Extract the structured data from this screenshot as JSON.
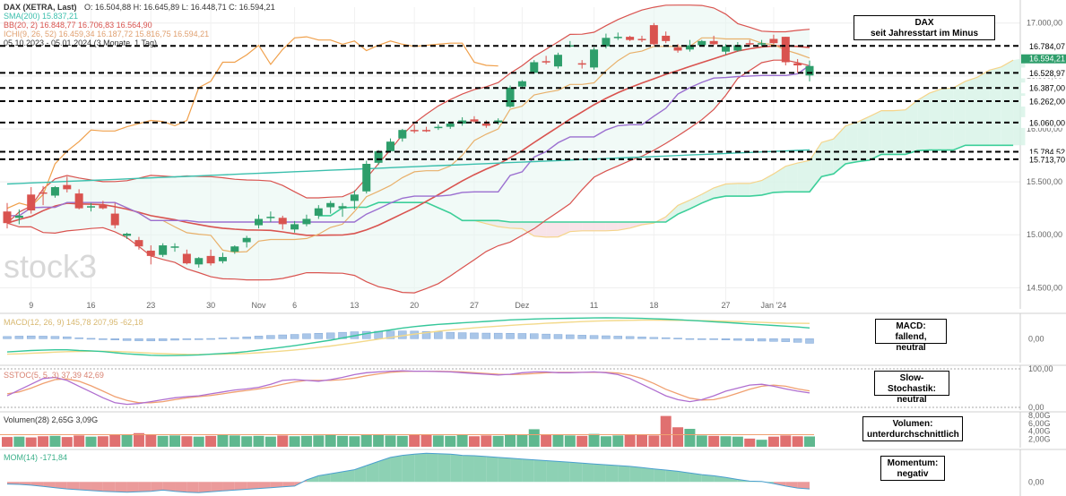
{
  "header": {
    "instrument": "DAX (XETRA, Last)",
    "ohlc": "O: 16.504,88   H: 16.645,89   L: 16.448,71   C: 16.594,21",
    "sma": "SMA(200)  15.837,21",
    "bb": "BB(20, 2)  16.848,77  16.706,83  16.564,90",
    "ichimoku": "ICHI(9, 26, 52)  16.459,34  16.187,72  15.816,75  16.594,21",
    "period": "05.10.2023 - 05.01.2024   (3 Monate, 1 Tag)"
  },
  "watermark": "stock3",
  "annotations": {
    "main": [
      "DAX",
      "seit Jahresstart im Minus"
    ],
    "macd": [
      "MACD:",
      "fallend, neutral"
    ],
    "stoch": [
      "Slow-Stochastik:",
      "neutral"
    ],
    "volume": [
      "Volumen:",
      "unterdurchschnittlich"
    ],
    "momentum": [
      "Momentum:",
      "negativ"
    ]
  },
  "indicator_legends": {
    "macd": "MACD(12, 26, 9)  145,78  207,95  -62,18",
    "stoch": "SSTOC(5, 5, 3)  37,39  42,69",
    "volume": "Volumen(28)  2,65G  3,09G",
    "momentum": "MOM(14)  -171,84"
  },
  "colors": {
    "up": "#2e9e6b",
    "down": "#d9534f",
    "bb": "#d9534f",
    "sma": "#3bbfad",
    "tenkan": "#e8b06a",
    "kijun": "#d9534f",
    "chikou": "#f0a04b",
    "senkouA": "#3ccf9a",
    "senkouB": "#9b6fd0",
    "leading": "#f5d48a",
    "cloud_up": "#d6f2e6",
    "cloud_down": "#f6dde3",
    "hline": "#000000",
    "macd": "#35c79a",
    "signal": "#f3d98a",
    "hist": "#a9c6e8",
    "stoch_k": "#b06fd0",
    "stoch_d": "#f0a070",
    "vol_up": "#5fb88f",
    "vol_down": "#e07070",
    "mom": "#79c9a7",
    "mom_neg": "#e88a8a"
  },
  "chart_data": [
    {
      "type": "candlestick",
      "title": "DAX (XETRA, Last)",
      "y_axis_ticks": [
        "14.500,00",
        "15.000,00",
        "15.500,00",
        "16.000,00",
        "16.500,00",
        "17.000,00"
      ],
      "ylim": [
        14300,
        17150
      ],
      "x_tick_labels": [
        "9",
        "16",
        "23",
        "30",
        "Nov",
        "6",
        "13",
        "20",
        "27",
        "Dez",
        "11",
        "18",
        "27",
        "Jan '24"
      ],
      "x_tick_index": [
        2,
        7,
        12,
        17,
        21,
        24,
        29,
        34,
        39,
        43,
        49,
        54,
        60,
        64
      ],
      "ohlc": [
        [
          15220,
          15300,
          15060,
          15110
        ],
        [
          15160,
          15240,
          15100,
          15180
        ],
        [
          15380,
          15450,
          15200,
          15230
        ],
        [
          15400,
          15460,
          15280,
          15390
        ],
        [
          15370,
          15460,
          15350,
          15450
        ],
        [
          15470,
          15550,
          15400,
          15430
        ],
        [
          15390,
          15430,
          15240,
          15250
        ],
        [
          15270,
          15300,
          15220,
          15270
        ],
        [
          15280,
          15320,
          15240,
          15250
        ],
        [
          15200,
          15300,
          15060,
          15090
        ],
        [
          14990,
          15020,
          14960,
          15010
        ],
        [
          14950,
          14980,
          14860,
          14890
        ],
        [
          14850,
          14900,
          14720,
          14800
        ],
        [
          14810,
          14920,
          14790,
          14900
        ],
        [
          14880,
          14920,
          14840,
          14890
        ],
        [
          14820,
          14860,
          14720,
          14730
        ],
        [
          14720,
          14790,
          14690,
          14780
        ],
        [
          14800,
          14860,
          14710,
          14730
        ],
        [
          14750,
          14830,
          14730,
          14790
        ],
        [
          14840,
          14900,
          14820,
          14890
        ],
        [
          14930,
          14990,
          14880,
          14970
        ],
        [
          15090,
          15190,
          15060,
          15150
        ],
        [
          15160,
          15220,
          15120,
          15170
        ],
        [
          15160,
          15180,
          15050,
          15100
        ],
        [
          15050,
          15130,
          15020,
          15100
        ],
        [
          15100,
          15190,
          15080,
          15150
        ],
        [
          15180,
          15280,
          15150,
          15250
        ],
        [
          15260,
          15320,
          15200,
          15300
        ],
        [
          15250,
          15300,
          15170,
          15270
        ],
        [
          15320,
          15420,
          15240,
          15380
        ],
        [
          15410,
          15700,
          15390,
          15670
        ],
        [
          15680,
          15800,
          15660,
          15790
        ],
        [
          15790,
          15910,
          15780,
          15880
        ],
        [
          15910,
          16000,
          15880,
          15990
        ],
        [
          15990,
          16040,
          15960,
          15980
        ],
        [
          15990,
          16020,
          15970,
          15980
        ],
        [
          16010,
          16040,
          15990,
          16020
        ],
        [
          16020,
          16060,
          16000,
          16050
        ],
        [
          16050,
          16110,
          16030,
          16080
        ],
        [
          16090,
          16120,
          16060,
          16070
        ],
        [
          16050,
          16080,
          16010,
          16030
        ],
        [
          16060,
          16100,
          16040,
          16080
        ],
        [
          16210,
          16410,
          16200,
          16390
        ],
        [
          16400,
          16460,
          16380,
          16450
        ],
        [
          16530,
          16650,
          16520,
          16630
        ],
        [
          16640,
          16690,
          16610,
          16630
        ],
        [
          16590,
          16720,
          16570,
          16700
        ],
        [
          16790,
          16830,
          16770,
          16790
        ],
        [
          16620,
          16650,
          16570,
          16610
        ],
        [
          16580,
          16770,
          16560,
          16750
        ],
        [
          16780,
          16900,
          16760,
          16860
        ],
        [
          16860,
          16910,
          16840,
          16870
        ],
        [
          16870,
          16880,
          16830,
          16840
        ],
        [
          16850,
          16880,
          16820,
          16840
        ],
        [
          16980,
          17000,
          16790,
          16800
        ],
        [
          16880,
          16920,
          16810,
          16830
        ],
        [
          16770,
          16800,
          16720,
          16740
        ],
        [
          16750,
          16840,
          16730,
          16790
        ],
        [
          16790,
          16840,
          16780,
          16830
        ],
        [
          16830,
          16880,
          16790,
          16800
        ],
        [
          16730,
          16800,
          16700,
          16780
        ],
        [
          16740,
          16820,
          16730,
          16790
        ],
        [
          16810,
          16840,
          16780,
          16800
        ],
        [
          16810,
          16840,
          16780,
          16810
        ],
        [
          16850,
          16890,
          16800,
          16810
        ],
        [
          16870,
          16870,
          16600,
          16630
        ],
        [
          16620,
          16660,
          16530,
          16600
        ],
        [
          16504.88,
          16645.89,
          16448.71,
          16594.21
        ]
      ],
      "horizontal_levels": [
        16784.07,
        16528.97,
        16387.0,
        16262.0,
        16060.0,
        15784.52,
        15713.7
      ],
      "horizontal_level_labels": [
        "16.784,07",
        "16.528,97",
        "16.387,00",
        "16.262,00",
        "16.060,00",
        "15.784,52",
        "15.713,70"
      ],
      "price_label": "16.594,21"
    },
    {
      "type": "line",
      "title": "MACD(12, 26, 9)",
      "y_axis_ticks": [
        "0,00"
      ],
      "series": [
        {
          "name": "MACD",
          "values": [
            -180,
            -170,
            -160,
            -155,
            -150,
            -150,
            -160,
            -165,
            -175,
            -190,
            -205,
            -215,
            -225,
            -230,
            -228,
            -225,
            -220,
            -210,
            -200,
            -190,
            -175,
            -155,
            -135,
            -115,
            -95,
            -70,
            -45,
            -20,
            10,
            40,
            70,
            95,
            120,
            145,
            165,
            180,
            195,
            205,
            215,
            225,
            235,
            245,
            255,
            262,
            268,
            272,
            275,
            278,
            280,
            282,
            283,
            282,
            280,
            276,
            270,
            265,
            258,
            250,
            240,
            230,
            220,
            210,
            200,
            190,
            180,
            170,
            160,
            145.78
          ]
        },
        {
          "name": "Signal",
          "values": [
            -210,
            -205,
            -198,
            -190,
            -182,
            -176,
            -172,
            -170,
            -170,
            -173,
            -180,
            -187,
            -195,
            -203,
            -208,
            -212,
            -214,
            -213,
            -210,
            -206,
            -200,
            -191,
            -180,
            -167,
            -153,
            -137,
            -119,
            -99,
            -77,
            -54,
            -30,
            -6,
            17,
            40,
            62,
            82,
            101,
            118,
            133,
            147,
            159,
            170,
            181,
            191,
            200,
            209,
            217,
            225,
            232,
            238,
            243,
            247,
            250,
            252,
            252,
            251,
            250,
            248,
            245,
            241,
            237,
            232,
            227,
            222,
            216,
            210,
            209,
            207.95
          ]
        }
      ],
      "histogram": [
        30,
        35,
        38,
        35,
        32,
        26,
        12,
        5,
        -5,
        -17,
        -25,
        -28,
        -30,
        -27,
        -20,
        -13,
        -6,
        3,
        10,
        16,
        25,
        36,
        45,
        52,
        58,
        67,
        74,
        79,
        87,
        94,
        100,
        101,
        103,
        105,
        103,
        98,
        94,
        87,
        82,
        78,
        76,
        75,
        74,
        71,
        68,
        63,
        58,
        53,
        48,
        44,
        40,
        35,
        30,
        24,
        18,
        14,
        8,
        2,
        -5,
        -11,
        -17,
        -22,
        -27,
        -32,
        -36,
        -40,
        -49,
        -62.18
      ]
    },
    {
      "type": "line",
      "title": "SSTOC(5, 5, 3)",
      "y_axis_ticks": [
        "0,00",
        "100,00"
      ],
      "ylim": [
        0,
        100
      ],
      "series": [
        {
          "name": "%K",
          "values": [
            30,
            45,
            60,
            75,
            78,
            70,
            55,
            40,
            25,
            12,
            8,
            10,
            15,
            20,
            25,
            28,
            30,
            35,
            40,
            45,
            48,
            52,
            60,
            70,
            72,
            70,
            68,
            72,
            78,
            85,
            90,
            92,
            94,
            95,
            94,
            94,
            93,
            92,
            90,
            88,
            86,
            84,
            86,
            90,
            92,
            92,
            90,
            90,
            91,
            92,
            90,
            85,
            75,
            60,
            45,
            30,
            20,
            15,
            20,
            30,
            42,
            50,
            58,
            60,
            55,
            48,
            42,
            37.39
          ]
        },
        {
          "name": "%D",
          "values": [
            35,
            40,
            50,
            62,
            72,
            74,
            68,
            56,
            42,
            28,
            18,
            12,
            12,
            15,
            20,
            25,
            28,
            31,
            35,
            40,
            44,
            48,
            53,
            60,
            66,
            70,
            70,
            70,
            72,
            76,
            82,
            87,
            91,
            93,
            94,
            94,
            94,
            93,
            92,
            90,
            88,
            86,
            85,
            86,
            88,
            90,
            91,
            91,
            91,
            91,
            91,
            89,
            84,
            75,
            62,
            47,
            35,
            24,
            19,
            20,
            27,
            37,
            47,
            55,
            58,
            55,
            48,
            42.69
          ]
        }
      ]
    },
    {
      "type": "bar",
      "title": "Volumen(28)",
      "y_axis_ticks": [
        "2,00G",
        "4,00G",
        "6,00G",
        "8,00G"
      ],
      "ylim": [
        0,
        8.5
      ],
      "values": [
        2.5,
        2.6,
        2.4,
        2.7,
        2.8,
        2.5,
        2.9,
        2.6,
        2.7,
        3.0,
        3.2,
        3.5,
        3.0,
        2.8,
        2.9,
        2.7,
        2.6,
        2.8,
        3.1,
        2.9,
        2.7,
        2.8,
        2.6,
        2.9,
        2.7,
        2.8,
        2.9,
        3.0,
        2.8,
        2.7,
        3.2,
        3.0,
        2.9,
        2.8,
        3.0,
        3.1,
        2.9,
        2.8,
        3.0,
        2.7,
        2.9,
        2.8,
        3.2,
        3.0,
        4.5,
        3.1,
        3.0,
        2.9,
        2.8,
        3.3,
        2.7,
        2.9,
        3.0,
        3.1,
        2.9,
        7.9,
        5.0,
        4.6,
        2.9,
        2.8,
        2.7,
        2.6,
        2.1,
        1.8,
        2.6,
        2.9,
        2.7,
        2.65
      ],
      "average": 3.09
    },
    {
      "type": "area",
      "title": "MOM(14)",
      "y_axis_ticks": [
        "0,00"
      ],
      "values": [
        -50,
        -60,
        -80,
        -110,
        -140,
        -170,
        -190,
        -210,
        -230,
        -240,
        -250,
        -240,
        -230,
        -200,
        -230,
        -250,
        -260,
        -240,
        -220,
        -200,
        -180,
        -160,
        -140,
        -120,
        -100,
        50,
        150,
        200,
        250,
        300,
        400,
        500,
        600,
        650,
        680,
        700,
        690,
        680,
        650,
        640,
        620,
        600,
        580,
        560,
        540,
        520,
        500,
        480,
        460,
        440,
        420,
        400,
        380,
        350,
        320,
        290,
        260,
        220,
        180,
        150,
        110,
        60,
        20,
        10,
        -40,
        -100,
        -150,
        -171.84
      ]
    }
  ]
}
